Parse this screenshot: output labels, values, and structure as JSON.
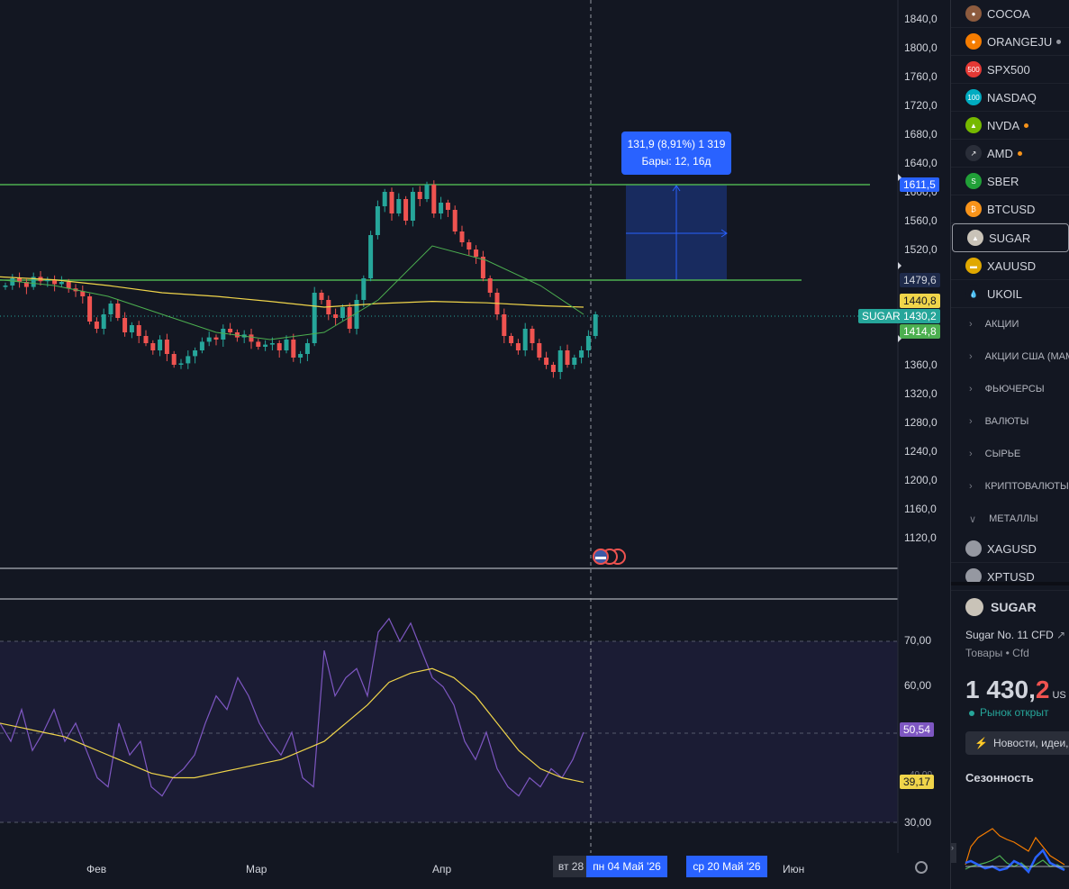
{
  "price_axis": {
    "labels": [
      "1840,0",
      "1800,0",
      "1760,0",
      "1720,0",
      "1680,0",
      "1640,0",
      "1600,0",
      "1560,0",
      "1520,0",
      "1360,0",
      "1320,0",
      "1280,0",
      "1240,0",
      "1200,0",
      "1160,0",
      "1120,0"
    ],
    "tags": {
      "top_line": "1611,5",
      "lower_line": "1479,6",
      "ma_slow": "1440,8",
      "last_price": "1430,2",
      "ma_fast": "1414,8"
    },
    "symbol_tag": "SUGAR"
  },
  "measure_box": {
    "line1": "131,9 (8,91%) 1 319",
    "line2": "Бары: 12, 16д"
  },
  "rsi_axis": {
    "labels": [
      "70,00",
      "60,00",
      "30,00"
    ],
    "partial_label": "40,00",
    "rsi_value": "50,54",
    "rsi_ma_value": "39,17"
  },
  "time_axis": {
    "labels": [
      "Фев",
      "Мар",
      "Апр",
      "Июн"
    ],
    "partial": "вт 28",
    "highlight_start": "пн 04 Май '26",
    "highlight_end": "ср 20 Май '26"
  },
  "watchlist": {
    "items": [
      {
        "symbol": "COCOA",
        "color": "#8d5b3e",
        "glyph": "●",
        "dot": ""
      },
      {
        "symbol": "ORANGEJU",
        "color": "#f57c00",
        "glyph": "●",
        "dot": "#9598a1"
      },
      {
        "symbol": "SPX500",
        "color": "#e53935",
        "glyph": "500",
        "dot": ""
      },
      {
        "symbol": "NASDAQ",
        "color": "#00acc1",
        "glyph": "100",
        "dot": ""
      },
      {
        "symbol": "NVDA",
        "color": "#76b900",
        "glyph": "▲",
        "dot": "#f7931a"
      },
      {
        "symbol": "AMD",
        "color": "#2a2e39",
        "glyph": "↗",
        "dot": "#f7931a"
      },
      {
        "symbol": "SBER",
        "color": "#21a038",
        "glyph": "S",
        "dot": ""
      },
      {
        "symbol": "BTCUSD",
        "color": "#f7931a",
        "glyph": "₿",
        "dot": ""
      },
      {
        "symbol": "SUGAR",
        "color": "#c9c3b8",
        "glyph": "▲",
        "dot": "",
        "active": true
      },
      {
        "symbol": "XAUUSD",
        "color": "#e0a800",
        "glyph": "▬",
        "dot": ""
      },
      {
        "symbol": "UKOIL",
        "color": "#131722",
        "glyph": "💧",
        "dot": ""
      }
    ],
    "sections": [
      "АКЦИИ",
      "АКЦИИ США (МАМ",
      "ФЬЮЧЕРСЫ",
      "ВАЛЮТЫ",
      "СЫРЬЕ",
      "КРИПТОВАЛЮТЫ"
    ],
    "open_section": "МЕТАЛЛЫ",
    "metal_items": [
      "XAGUSD",
      "XPTUSD"
    ]
  },
  "details": {
    "symbol": "SUGAR",
    "description": "Sugar No. 11 CFD",
    "category": "Товары",
    "type": "Cfd",
    "price_main": "1 430,",
    "price_decimal": "2",
    "currency": "US",
    "market_status": "Рынок открыт",
    "news_button": "Новости, идеи,",
    "seasonality_title": "Сезонность"
  },
  "colors": {
    "up": "#26a69a",
    "down": "#ef5350",
    "ma_slow": "#f0d54a",
    "ma_fast": "#4caf50",
    "rsi": "#7e57c2",
    "rsi_ma": "#f0d54a",
    "line_green": "#4caf50",
    "measure": "#2962ff"
  }
}
